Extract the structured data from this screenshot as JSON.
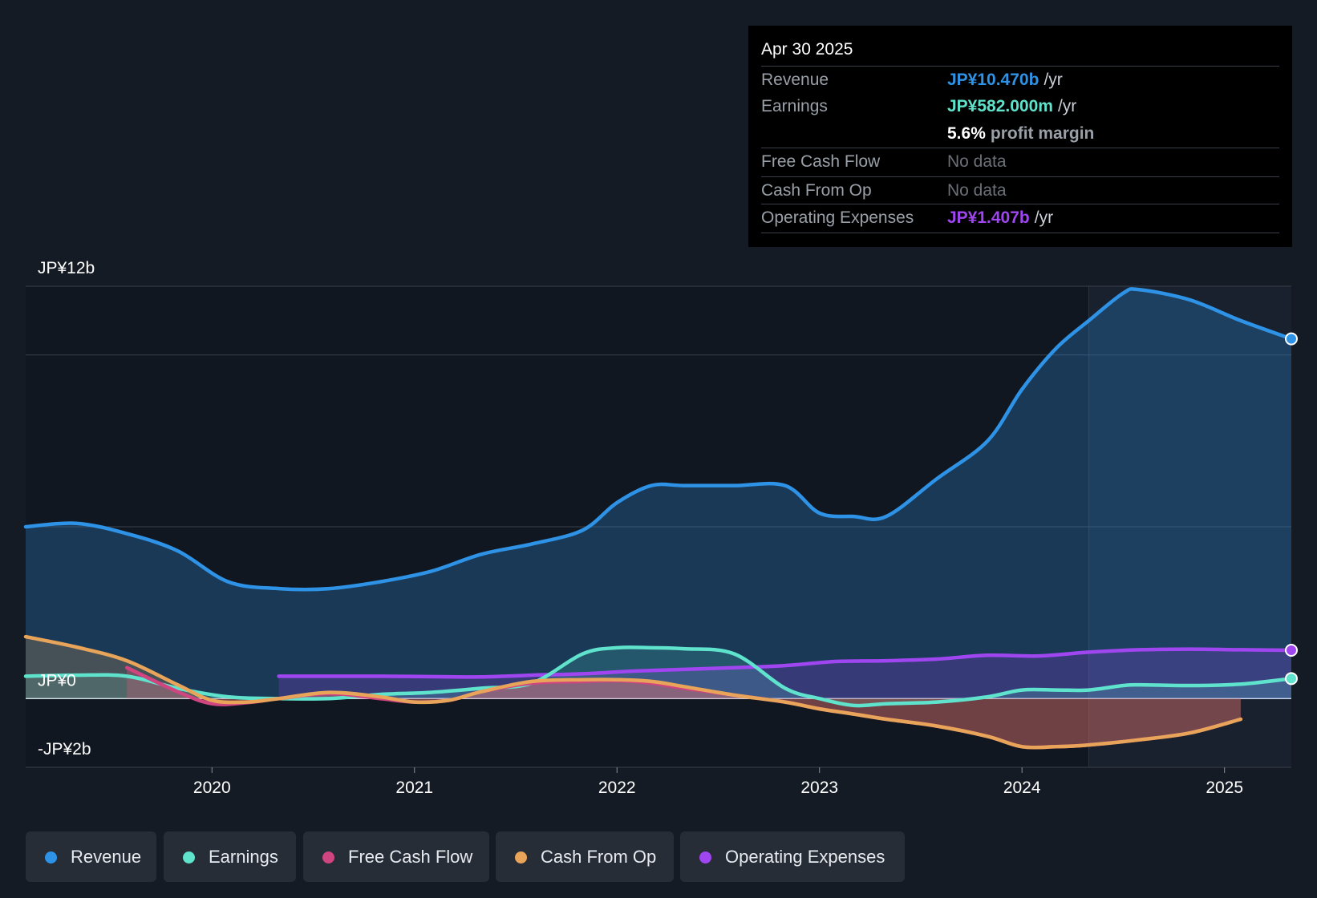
{
  "colors": {
    "revenue": "#2e93e6",
    "earnings": "#5fe3cc",
    "fcf": "#d0447f",
    "cfo": "#e8a55a",
    "opex": "#a046f0",
    "background": "#151b24"
  },
  "tooltip": {
    "date": "Apr 30 2025",
    "rows": [
      {
        "label": "Revenue",
        "value": "JP¥10.470b",
        "unit": "/yr"
      },
      {
        "label": "Earnings",
        "value": "JP¥582.000m",
        "unit": "/yr"
      },
      {
        "label": "",
        "value": "5.6%",
        "unit": "profit margin"
      },
      {
        "label": "Free Cash Flow",
        "value": "No data",
        "unit": ""
      },
      {
        "label": "Cash From Op",
        "value": "No data",
        "unit": ""
      },
      {
        "label": "Operating Expenses",
        "value": "JP¥1.407b",
        "unit": "/yr"
      }
    ]
  },
  "legend": [
    {
      "label": "Revenue",
      "key": "revenue"
    },
    {
      "label": "Earnings",
      "key": "earnings"
    },
    {
      "label": "Free Cash Flow",
      "key": "fcf"
    },
    {
      "label": "Cash From Op",
      "key": "cfo"
    },
    {
      "label": "Operating Expenses",
      "key": "opex"
    }
  ],
  "chart_data": {
    "type": "area",
    "title": "",
    "xlabel": "",
    "ylabel": "",
    "ylim": [
      -2,
      12
    ],
    "xlim": [
      2019.08,
      2025.33
    ],
    "y_tick_labels": [
      {
        "value": 12,
        "label": "JP¥12b"
      },
      {
        "value": 0,
        "label": "JP¥0"
      },
      {
        "value": -2,
        "label": "-JP¥2b"
      }
    ],
    "gridlines": [
      12,
      10,
      5,
      0,
      -2
    ],
    "x_ticks": [
      2020,
      2021,
      2022,
      2023,
      2024,
      2025
    ],
    "x_tick_labels": [
      "2020",
      "2021",
      "2022",
      "2023",
      "2024",
      "2025"
    ],
    "highlight_from": 2024.33,
    "series": [
      {
        "name": "Revenue",
        "key": "revenue",
        "x": [
          2019.08,
          2019.33,
          2019.58,
          2019.83,
          2020.08,
          2020.33,
          2020.58,
          2020.83,
          2021.08,
          2021.33,
          2021.58,
          2021.83,
          2022.0,
          2022.17,
          2022.33,
          2022.58,
          2022.83,
          2023.0,
          2023.17,
          2023.33,
          2023.58,
          2023.83,
          2024.0,
          2024.17,
          2024.33,
          2024.5,
          2024.58,
          2024.83,
          2025.08,
          2025.33
        ],
        "values": [
          5.0,
          5.1,
          4.8,
          4.3,
          3.4,
          3.2,
          3.2,
          3.4,
          3.7,
          4.2,
          4.5,
          4.9,
          5.7,
          6.2,
          6.2,
          6.2,
          6.2,
          5.4,
          5.3,
          5.3,
          6.4,
          7.5,
          9.0,
          10.2,
          11.0,
          11.8,
          11.9,
          11.6,
          11.0,
          10.47
        ]
      },
      {
        "name": "Earnings",
        "key": "earnings",
        "x": [
          2019.08,
          2019.33,
          2019.58,
          2019.83,
          2020.08,
          2020.33,
          2020.58,
          2020.83,
          2021.08,
          2021.33,
          2021.58,
          2021.83,
          2022.0,
          2022.17,
          2022.33,
          2022.58,
          2022.83,
          2023.0,
          2023.17,
          2023.33,
          2023.58,
          2023.83,
          2024.0,
          2024.17,
          2024.33,
          2024.5,
          2024.58,
          2024.83,
          2025.08,
          2025.33
        ],
        "values": [
          0.65,
          0.68,
          0.65,
          0.3,
          0.05,
          0.0,
          0.0,
          0.12,
          0.18,
          0.3,
          0.45,
          1.3,
          1.48,
          1.48,
          1.45,
          1.3,
          0.3,
          0.0,
          -0.2,
          -0.15,
          -0.1,
          0.05,
          0.25,
          0.25,
          0.25,
          0.38,
          0.4,
          0.38,
          0.42,
          0.582
        ]
      },
      {
        "name": "Free Cash Flow",
        "key": "fcf",
        "x": [
          2019.58,
          2019.83,
          2020.0,
          2020.17,
          2020.33,
          2020.58,
          2020.83,
          2021.0,
          2021.17,
          2021.33,
          2021.58,
          2021.83,
          2022.0,
          2022.17,
          2022.33,
          2022.58,
          2022.83,
          2023.0,
          2023.17,
          2023.33,
          2023.58,
          2023.83,
          2024.0,
          2024.17,
          2024.33,
          2024.58,
          2024.83,
          2025.08
        ],
        "values": [
          0.9,
          0.2,
          -0.15,
          -0.12,
          0.0,
          0.15,
          0.0,
          -0.1,
          -0.05,
          0.2,
          0.45,
          0.5,
          0.52,
          0.45,
          0.3,
          0.1,
          -0.1,
          -0.3,
          -0.45,
          -0.6,
          -0.8,
          -1.1,
          -1.4,
          -1.4,
          -1.35,
          -1.2,
          -1.0,
          -0.6
        ]
      },
      {
        "name": "Cash From Op",
        "key": "cfo",
        "x": [
          2019.08,
          2019.33,
          2019.58,
          2019.83,
          2020.0,
          2020.17,
          2020.33,
          2020.58,
          2020.83,
          2021.0,
          2021.17,
          2021.33,
          2021.58,
          2021.83,
          2022.0,
          2022.17,
          2022.33,
          2022.58,
          2022.83,
          2023.0,
          2023.17,
          2023.33,
          2023.58,
          2023.83,
          2024.0,
          2024.17,
          2024.33,
          2024.58,
          2024.83,
          2025.08
        ],
        "values": [
          1.8,
          1.5,
          1.1,
          0.4,
          -0.05,
          -0.1,
          0.0,
          0.18,
          0.05,
          -0.1,
          -0.05,
          0.2,
          0.5,
          0.55,
          0.55,
          0.5,
          0.35,
          0.1,
          -0.1,
          -0.3,
          -0.45,
          -0.6,
          -0.8,
          -1.1,
          -1.4,
          -1.4,
          -1.35,
          -1.2,
          -1.0,
          -0.6
        ]
      },
      {
        "name": "Operating Expenses",
        "key": "opex",
        "x": [
          2020.33,
          2020.58,
          2020.83,
          2021.08,
          2021.33,
          2021.58,
          2021.83,
          2022.08,
          2022.33,
          2022.58,
          2022.83,
          2023.08,
          2023.33,
          2023.58,
          2023.83,
          2024.08,
          2024.33,
          2024.58,
          2024.83,
          2025.08,
          2025.33
        ],
        "values": [
          0.65,
          0.65,
          0.65,
          0.64,
          0.63,
          0.68,
          0.72,
          0.8,
          0.85,
          0.9,
          0.96,
          1.08,
          1.1,
          1.15,
          1.26,
          1.24,
          1.35,
          1.42,
          1.44,
          1.42,
          1.407
        ]
      }
    ]
  }
}
